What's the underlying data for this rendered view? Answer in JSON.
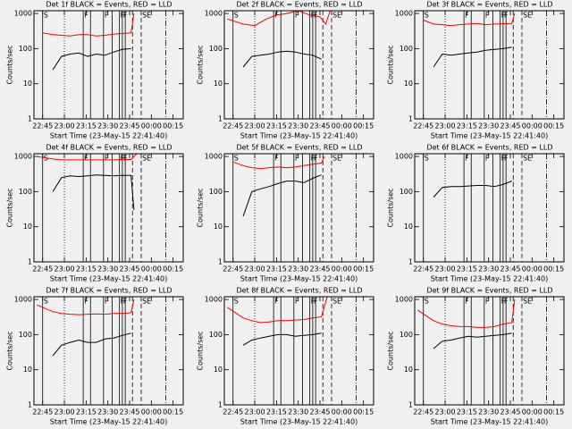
{
  "chart_data": [
    {
      "type": "line",
      "title": "Det 1f BLACK = Events, RED = LLD",
      "xlabel": "Start Time (23-May-15 22:41:40)",
      "ylabel": "Counts/sec",
      "log_y": true,
      "xlim": [
        "22:39",
        "00:22"
      ],
      "ylim": [
        1,
        1200
      ],
      "xticks": [
        "22:45",
        "23:00",
        "23:15",
        "23:30",
        "23:45",
        "00:00",
        "00:15"
      ],
      "yticks": [
        1,
        10,
        100,
        1000
      ],
      "series": [
        {
          "color": "#000000",
          "x": [
            "22:52",
            "22:58",
            "23:04",
            "23:10",
            "23:16",
            "23:22",
            "23:28",
            "23:34",
            "23:40",
            "23:46"
          ],
          "values": [
            25,
            60,
            70,
            75,
            60,
            70,
            65,
            80,
            95,
            100
          ]
        },
        {
          "color": "#ff0000",
          "x": [
            "22:45",
            "22:52",
            "22:58",
            "23:04",
            "23:10",
            "23:16",
            "23:22",
            "23:28",
            "23:34",
            "23:40",
            "23:46",
            "23:48"
          ],
          "values": [
            280,
            250,
            240,
            230,
            250,
            250,
            230,
            240,
            260,
            270,
            280,
            1000
          ]
        }
      ]
    },
    {
      "type": "line",
      "title": "Det 2f BLACK = Events, RED = LLD",
      "xlabel": "Start Time (23-May-15 22:41:40)",
      "ylabel": "Counts/sec",
      "log_y": true,
      "xlim": [
        "22:39",
        "00:22"
      ],
      "ylim": [
        1,
        1200
      ],
      "xticks": [
        "22:45",
        "23:00",
        "23:15",
        "23:30",
        "23:45",
        "00:00",
        "00:15"
      ],
      "yticks": [
        1,
        10,
        100,
        1000
      ],
      "series": [
        {
          "color": "#000000",
          "x": [
            "22:52",
            "22:58",
            "23:04",
            "23:10",
            "23:16",
            "23:22",
            "23:28",
            "23:34",
            "23:40",
            "23:46"
          ],
          "values": [
            30,
            60,
            65,
            70,
            80,
            85,
            80,
            70,
            65,
            50
          ]
        },
        {
          "color": "#ff0000",
          "x": [
            "22:41",
            "22:52",
            "23:00",
            "23:08",
            "23:15",
            "23:22",
            "23:30",
            "23:38",
            "23:45",
            "23:49",
            "23:52"
          ],
          "values": [
            700,
            500,
            450,
            700,
            900,
            1000,
            1200,
            900,
            800,
            500,
            1200
          ]
        }
      ]
    },
    {
      "type": "line",
      "title": "Det 3f BLACK = Events, RED = LLD",
      "xlabel": "Start Time (23-May-15 22:41:40)",
      "ylabel": "Counts/sec",
      "log_y": true,
      "xlim": [
        "22:39",
        "00:22"
      ],
      "ylim": [
        1,
        1200
      ],
      "xticks": [
        "22:45",
        "23:00",
        "23:15",
        "23:30",
        "23:45",
        "00:00",
        "00:15"
      ],
      "yticks": [
        1,
        10,
        100,
        1000
      ],
      "series": [
        {
          "color": "#000000",
          "x": [
            "22:52",
            "22:58",
            "23:04",
            "23:10",
            "23:16",
            "23:22",
            "23:28",
            "23:34",
            "23:40",
            "23:46"
          ],
          "values": [
            30,
            70,
            65,
            70,
            75,
            80,
            90,
            95,
            100,
            110
          ]
        },
        {
          "color": "#ff0000",
          "x": [
            "22:45",
            "22:52",
            "22:58",
            "23:04",
            "23:10",
            "23:16",
            "23:22",
            "23:28",
            "23:34",
            "23:40",
            "23:46",
            "23:48"
          ],
          "values": [
            650,
            500,
            480,
            450,
            480,
            500,
            520,
            480,
            500,
            510,
            520,
            1000
          ]
        }
      ]
    },
    {
      "type": "line",
      "title": "Det 4f BLACK = Events, RED = LLD",
      "xlabel": "Start Time (23-May-15 22:41:40)",
      "ylabel": "Counts/sec",
      "log_y": true,
      "xlim": [
        "22:39",
        "00:22"
      ],
      "ylim": [
        1,
        1200
      ],
      "xticks": [
        "22:45",
        "23:00",
        "23:15",
        "23:30",
        "23:45",
        "00:00",
        "00:15"
      ],
      "yticks": [
        1,
        10,
        100,
        1000
      ],
      "series": [
        {
          "color": "#000000",
          "x": [
            "22:52",
            "22:58",
            "23:04",
            "23:10",
            "23:16",
            "23:22",
            "23:28",
            "23:34",
            "23:40",
            "23:46",
            "23:48"
          ],
          "values": [
            100,
            250,
            280,
            270,
            280,
            300,
            290,
            280,
            290,
            290,
            30
          ]
        },
        {
          "color": "#ff0000",
          "x": [
            "22:41",
            "22:52",
            "22:58",
            "23:04",
            "23:10",
            "23:16",
            "23:22",
            "23:28",
            "23:34",
            "23:40",
            "23:46",
            "23:50"
          ],
          "values": [
            1000,
            850,
            800,
            800,
            800,
            800,
            800,
            800,
            800,
            820,
            820,
            1200
          ]
        }
      ]
    },
    {
      "type": "line",
      "title": "Det 5f BLACK = Events, RED = LLD",
      "xlabel": "Start Time (23-May-15 22:41:40)",
      "ylabel": "Counts/sec",
      "log_y": true,
      "xlim": [
        "22:39",
        "00:22"
      ],
      "ylim": [
        1,
        1200
      ],
      "xticks": [
        "22:45",
        "23:00",
        "23:15",
        "23:30",
        "23:45",
        "00:00",
        "00:15"
      ],
      "yticks": [
        1,
        10,
        100,
        1000
      ],
      "series": [
        {
          "color": "#000000",
          "x": [
            "22:52",
            "22:58",
            "23:04",
            "23:10",
            "23:16",
            "23:22",
            "23:28",
            "23:34",
            "23:40",
            "23:46"
          ],
          "values": [
            20,
            100,
            120,
            140,
            170,
            200,
            200,
            180,
            240,
            300
          ]
        },
        {
          "color": "#ff0000",
          "x": [
            "22:45",
            "22:52",
            "22:58",
            "23:04",
            "23:10",
            "23:16",
            "23:22",
            "23:28",
            "23:34",
            "23:40",
            "23:46",
            "23:48"
          ],
          "values": [
            700,
            550,
            480,
            450,
            480,
            500,
            480,
            500,
            550,
            600,
            650,
            1000
          ]
        }
      ]
    },
    {
      "type": "line",
      "title": "Det 6f BLACK = Events, RED = LLD",
      "xlabel": "Start Time (23-May-15 22:41:40)",
      "ylabel": "Counts/sec",
      "log_y": true,
      "xlim": [
        "22:39",
        "00:22"
      ],
      "ylim": [
        1,
        1200
      ],
      "xticks": [
        "22:45",
        "23:00",
        "23:15",
        "23:30",
        "23:45",
        "00:00",
        "00:15"
      ],
      "yticks": [
        1,
        10,
        100,
        1000
      ],
      "series": [
        {
          "color": "#000000",
          "x": [
            "22:52",
            "22:58",
            "23:04",
            "23:10",
            "23:16",
            "23:22",
            "23:28",
            "23:34",
            "23:40",
            "23:46"
          ],
          "values": [
            70,
            130,
            140,
            140,
            145,
            150,
            150,
            140,
            160,
            200
          ]
        }
      ]
    },
    {
      "type": "line",
      "title": "Det 7f BLACK = Events, RED = LLD",
      "xlabel": "Start Time (23-May-15 22:41:40)",
      "ylabel": "Counts/sec",
      "log_y": true,
      "xlim": [
        "22:39",
        "00:22"
      ],
      "ylim": [
        1,
        1200
      ],
      "xticks": [
        "22:45",
        "23:00",
        "23:15",
        "23:30",
        "23:45",
        "00:00",
        "00:15"
      ],
      "yticks": [
        1,
        10,
        100,
        1000
      ],
      "series": [
        {
          "color": "#000000",
          "x": [
            "22:52",
            "22:58",
            "23:04",
            "23:10",
            "23:16",
            "23:22",
            "23:28",
            "23:34",
            "23:40",
            "23:46"
          ],
          "values": [
            25,
            50,
            60,
            70,
            60,
            60,
            75,
            80,
            95,
            110
          ]
        },
        {
          "color": "#ff0000",
          "x": [
            "22:41",
            "22:52",
            "22:58",
            "23:04",
            "23:10",
            "23:16",
            "23:22",
            "23:28",
            "23:34",
            "23:40",
            "23:46",
            "23:48"
          ],
          "values": [
            700,
            450,
            400,
            380,
            370,
            380,
            390,
            380,
            400,
            400,
            420,
            1000
          ]
        }
      ]
    },
    {
      "type": "line",
      "title": "Det 8f BLACK = Events, RED = LLD",
      "xlabel": "Start Time (23-May-15 22:41:40)",
      "ylabel": "Counts/sec",
      "log_y": true,
      "xlim": [
        "22:39",
        "00:22"
      ],
      "ylim": [
        1,
        1200
      ],
      "xticks": [
        "22:45",
        "23:00",
        "23:15",
        "23:30",
        "23:45",
        "00:00",
        "00:15"
      ],
      "yticks": [
        1,
        10,
        100,
        1000
      ],
      "series": [
        {
          "color": "#000000",
          "x": [
            "22:52",
            "22:58",
            "23:04",
            "23:10",
            "23:16",
            "23:22",
            "23:28",
            "23:34",
            "23:40",
            "23:46"
          ],
          "values": [
            50,
            70,
            80,
            90,
            100,
            100,
            90,
            95,
            100,
            110
          ]
        },
        {
          "color": "#ff0000",
          "x": [
            "22:41",
            "22:52",
            "22:58",
            "23:04",
            "23:10",
            "23:16",
            "23:22",
            "23:28",
            "23:34",
            "23:40",
            "23:46",
            "23:50"
          ],
          "values": [
            600,
            300,
            250,
            220,
            230,
            250,
            250,
            260,
            270,
            300,
            320,
            1200
          ]
        }
      ]
    },
    {
      "type": "line",
      "title": "Det 9f BLACK = Events, RED = LLD",
      "xlabel": "Start Time (23-May-15 22:41:40)",
      "ylabel": "Counts/sec",
      "log_y": true,
      "xlim": [
        "22:39",
        "00:22"
      ],
      "ylim": [
        1,
        1200
      ],
      "xticks": [
        "22:45",
        "23:00",
        "23:15",
        "23:30",
        "23:45",
        "00:00",
        "00:15"
      ],
      "yticks": [
        1,
        10,
        100,
        1000
      ],
      "series": [
        {
          "color": "#000000",
          "x": [
            "22:52",
            "22:58",
            "23:04",
            "23:10",
            "23:16",
            "23:22",
            "23:28",
            "23:34",
            "23:40",
            "23:46"
          ],
          "values": [
            40,
            65,
            70,
            80,
            90,
            85,
            90,
            95,
            100,
            110
          ]
        },
        {
          "color": "#ff0000",
          "x": [
            "22:41",
            "22:52",
            "22:58",
            "23:04",
            "23:10",
            "23:16",
            "23:22",
            "23:28",
            "23:34",
            "23:40",
            "23:46",
            "23:48"
          ],
          "values": [
            500,
            250,
            200,
            180,
            170,
            170,
            160,
            160,
            170,
            200,
            220,
            1000
          ]
        }
      ]
    }
  ],
  "events": [
    {
      "x": "22:45",
      "style": "solid",
      "label": "S"
    },
    {
      "x": "23:00",
      "style": "dotted"
    },
    {
      "x": "23:13",
      "style": "solid",
      "label": "F"
    },
    {
      "x": "23:18",
      "style": "solid"
    },
    {
      "x": "23:27",
      "style": "solid",
      "label": "F"
    },
    {
      "x": "23:33",
      "style": "solid"
    },
    {
      "x": "23:38",
      "style": "solid",
      "label": "F"
    },
    {
      "x": "23:40",
      "style": "solid",
      "label": "F"
    },
    {
      "x": "23:42",
      "style": "solid"
    },
    {
      "x": "23:47",
      "style": "dashed"
    },
    {
      "x": "23:53",
      "style": "dashed",
      "label": "SE"
    },
    {
      "x": "00:10",
      "style": "dashdot"
    }
  ]
}
